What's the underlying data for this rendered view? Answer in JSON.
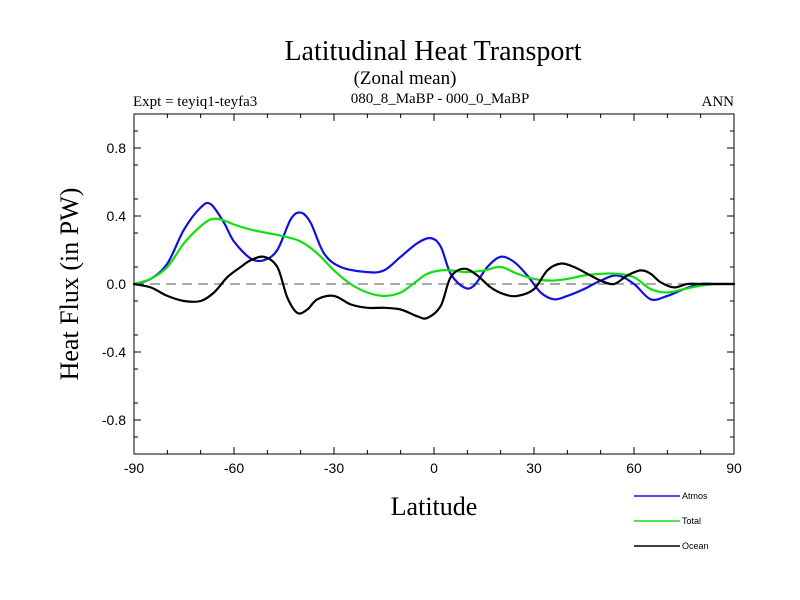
{
  "chart_data": {
    "type": "line",
    "title": "Latitudinal Heat Transport",
    "subtitle": "(Zonal mean)",
    "left_note": "Expt = teyiq1-teyfa3",
    "center_note": "080_8_MaBP - 000_0_MaBP",
    "right_note": "ANN",
    "xlabel": "Latitude",
    "ylabel": "Heat Flux (in PW)",
    "xlim": [
      -90,
      90
    ],
    "ylim": [
      -1.0,
      1.0
    ],
    "xticks": [
      -90,
      -60,
      -30,
      0,
      30,
      60,
      90
    ],
    "xtick_labels": [
      "-90",
      "-60",
      "-30",
      "0",
      "30",
      "60",
      "90"
    ],
    "yticks": [
      -0.8,
      -0.4,
      0.0,
      0.4,
      0.8
    ],
    "ytick_labels": [
      "-0.8",
      "-0.4",
      "0.0",
      "0.4",
      "0.8"
    ],
    "zero_line": true,
    "series": [
      {
        "name": "Atmos",
        "color": "#1010e0",
        "x": [
          -90,
          -85,
          -80,
          -75,
          -70,
          -67,
          -63,
          -60,
          -55,
          -51,
          -47,
          -43,
          -40,
          -37,
          -33,
          -28,
          -20,
          -15,
          -10,
          -5,
          -1,
          2,
          5,
          9,
          12,
          16,
          20,
          24,
          28,
          32,
          36,
          40,
          45,
          50,
          55,
          60,
          65,
          70,
          75,
          80,
          85,
          90
        ],
        "y": [
          0.0,
          0.03,
          0.12,
          0.32,
          0.45,
          0.47,
          0.36,
          0.25,
          0.15,
          0.14,
          0.2,
          0.38,
          0.42,
          0.36,
          0.18,
          0.1,
          0.07,
          0.08,
          0.16,
          0.24,
          0.27,
          0.22,
          0.06,
          -0.02,
          -0.01,
          0.1,
          0.16,
          0.13,
          0.05,
          -0.05,
          -0.09,
          -0.07,
          -0.03,
          0.02,
          0.05,
          0.0,
          -0.09,
          -0.07,
          -0.03,
          0.0,
          0.0,
          0.0
        ]
      },
      {
        "name": "Total",
        "color": "#10e010",
        "x": [
          -90,
          -85,
          -80,
          -75,
          -70,
          -67,
          -64,
          -60,
          -55,
          -50,
          -45,
          -40,
          -35,
          -30,
          -25,
          -20,
          -15,
          -10,
          -5,
          -2,
          2,
          5,
          10,
          15,
          20,
          25,
          30,
          35,
          40,
          45,
          50,
          55,
          60,
          65,
          70,
          75,
          80,
          85,
          90
        ],
        "y": [
          0.0,
          0.03,
          0.1,
          0.24,
          0.34,
          0.38,
          0.38,
          0.35,
          0.32,
          0.3,
          0.28,
          0.25,
          0.18,
          0.08,
          0.0,
          -0.05,
          -0.07,
          -0.05,
          0.02,
          0.06,
          0.08,
          0.08,
          0.07,
          0.08,
          0.1,
          0.06,
          0.03,
          0.02,
          0.03,
          0.05,
          0.06,
          0.06,
          0.04,
          -0.03,
          -0.05,
          -0.03,
          -0.01,
          0.0,
          0.0
        ]
      },
      {
        "name": "Ocean",
        "color": "#000000",
        "x": [
          -90,
          -85,
          -80,
          -75,
          -70,
          -66,
          -62,
          -58,
          -55,
          -51,
          -47,
          -44,
          -41,
          -38,
          -35,
          -30,
          -25,
          -20,
          -15,
          -10,
          -5,
          -2,
          2,
          5,
          9,
          13,
          17,
          21,
          25,
          30,
          34,
          38,
          42,
          46,
          50,
          54,
          58,
          62,
          65,
          68,
          72,
          76,
          80,
          85,
          90
        ],
        "y": [
          0.0,
          -0.02,
          -0.07,
          -0.1,
          -0.1,
          -0.05,
          0.04,
          0.1,
          0.14,
          0.16,
          0.1,
          -0.08,
          -0.17,
          -0.15,
          -0.09,
          -0.07,
          -0.12,
          -0.14,
          -0.14,
          -0.15,
          -0.19,
          -0.2,
          -0.13,
          0.04,
          0.09,
          0.05,
          -0.02,
          -0.06,
          -0.07,
          -0.03,
          0.08,
          0.12,
          0.1,
          0.06,
          0.02,
          0.0,
          0.05,
          0.08,
          0.06,
          0.01,
          -0.02,
          0.0,
          0.0,
          0.0,
          0.0
        ]
      }
    ],
    "legend": [
      {
        "label": "Atmos",
        "color": "#1010e0"
      },
      {
        "label": "Total",
        "color": "#10e010"
      },
      {
        "label": "Ocean",
        "color": "#000000"
      }
    ]
  }
}
